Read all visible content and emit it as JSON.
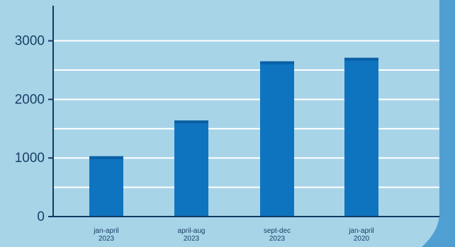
{
  "chart_data": {
    "type": "bar",
    "title": "",
    "xlabel": "",
    "ylabel": "",
    "categories": [
      "jan-april 2023",
      "april-aug 2023",
      "sept-dec 2023",
      "jan-april 2020"
    ],
    "category_lines": [
      [
        "jan-april",
        "2023"
      ],
      [
        "april-aug",
        "2023"
      ],
      [
        "sept-dec",
        "2023"
      ],
      [
        "jan-april",
        "2020"
      ]
    ],
    "values": [
      1030,
      1640,
      2650,
      2710
    ],
    "ylim": [
      0,
      3600
    ],
    "yticks": [
      0,
      1000,
      2000,
      3000
    ],
    "grid": true,
    "gridlines": [
      500,
      1000,
      1500,
      2000,
      2500,
      3000
    ],
    "colors": {
      "background": "#a8d4e8",
      "panel": "#4f9fd3",
      "bar": "#0f74bf",
      "bar_top": "#0b5fa5",
      "grid": "#ffffff",
      "axis": "#123a63",
      "text": "#1c3f66"
    }
  }
}
